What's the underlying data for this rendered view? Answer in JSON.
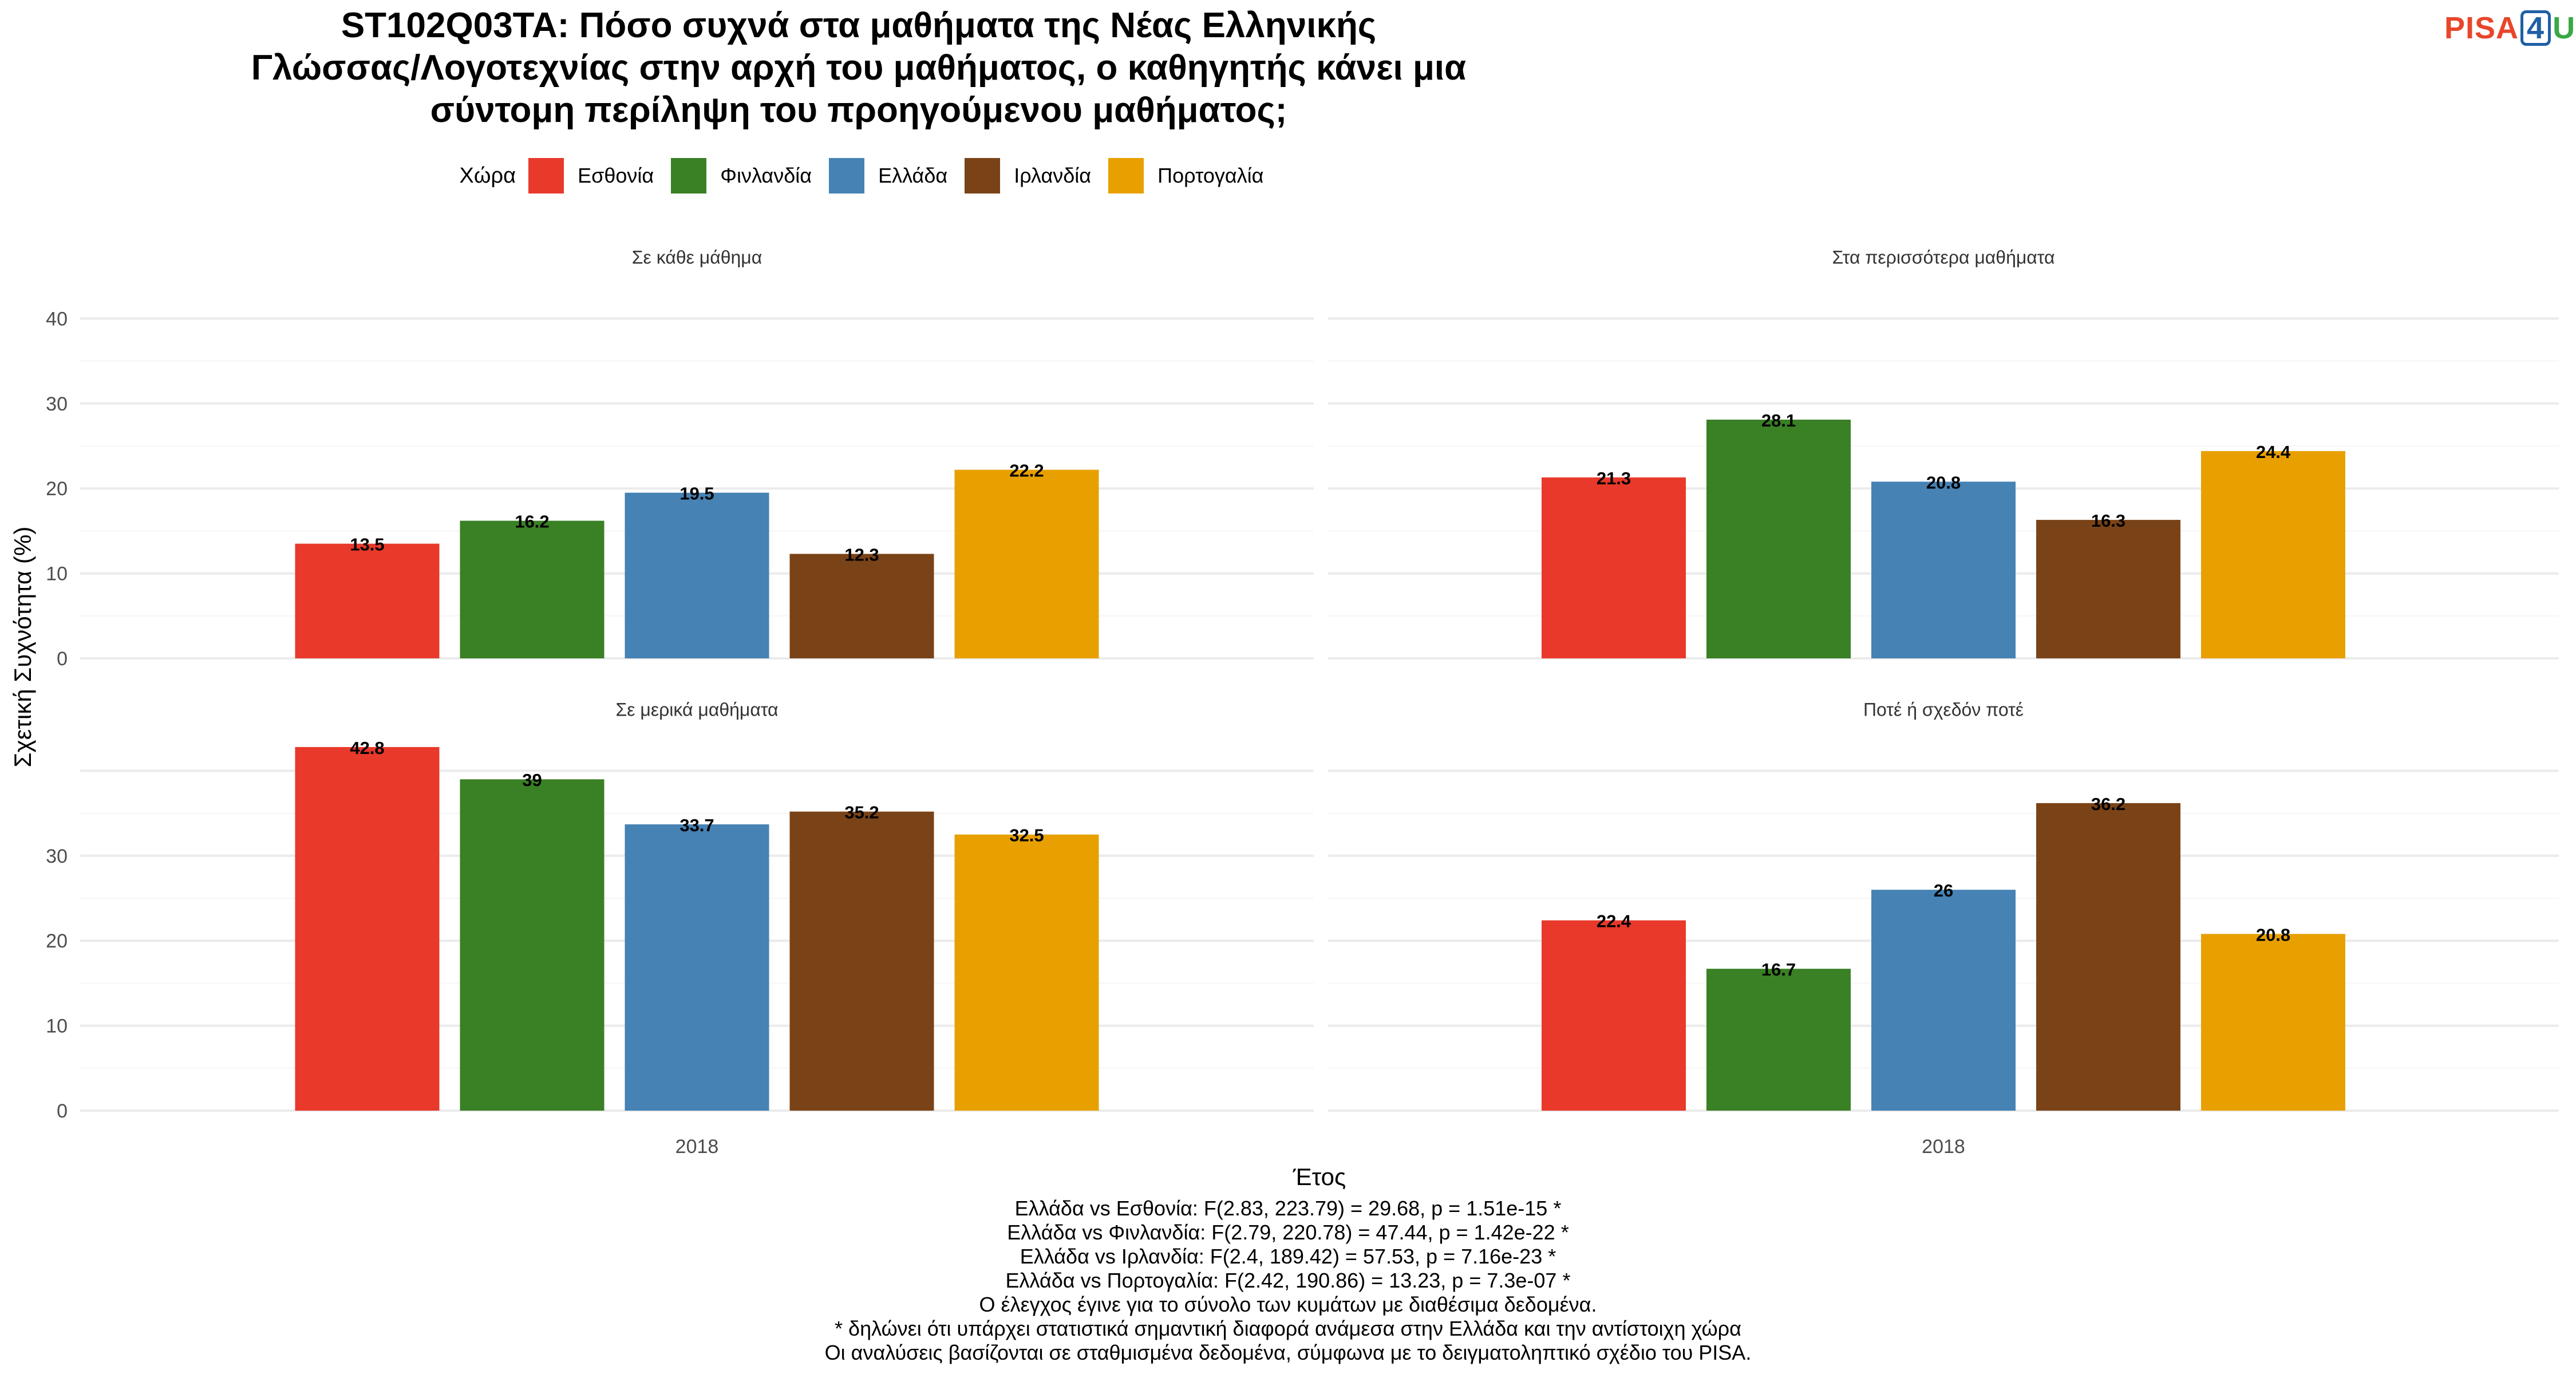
{
  "title_lines": [
    "ST102Q03TA: Πόσο συχνά στα μαθήματα της Νέας Ελληνικής",
    "Γλώσσας/Λογοτεχνίας στην αρχή του μαθήματος, ο καθηγητής κάνει μια",
    "σύντομη περίληψη του προηγούμενου μαθήματος;"
  ],
  "logo": {
    "part1": "PISA",
    "part2": "4",
    "part3": "U"
  },
  "legend": {
    "title": "Χώρα",
    "items": [
      {
        "label": "Εσθονία",
        "color": "#e8392b"
      },
      {
        "label": "Φινλανδία",
        "color": "#3a8025"
      },
      {
        "label": "Ελλάδα",
        "color": "#4682b4"
      },
      {
        "label": "Ιρλανδία",
        "color": "#7a4317"
      },
      {
        "label": "Πορτογαλία",
        "color": "#e8a000"
      }
    ]
  },
  "chart_data": {
    "type": "bar",
    "xlabel": "Έτος",
    "ylabel": "Σχετική Συχνότητα (%)",
    "ylim": [
      0,
      40
    ],
    "yticks": [
      0,
      10,
      20,
      30,
      40
    ],
    "grid": true,
    "legend_position": "top",
    "categories": [
      "2018"
    ],
    "series_names": [
      "Εσθονία",
      "Φινλανδία",
      "Ελλάδα",
      "Ιρλανδία",
      "Πορτογαλία"
    ],
    "facets": [
      {
        "title": "Σε κάθε μάθημα",
        "values": [
          13.5,
          16.2,
          19.5,
          12.3,
          22.2
        ],
        "labels": [
          "13.5",
          "16.2",
          "19.5",
          "12.3",
          "22.2"
        ]
      },
      {
        "title": "Στα περισσότερα μαθήματα",
        "values": [
          21.3,
          28.1,
          20.8,
          16.3,
          24.4
        ],
        "labels": [
          "21.3",
          "28.1",
          "20.8",
          "16.3",
          "24.4"
        ]
      },
      {
        "title": "Σε μερικά μαθήματα",
        "values": [
          42.8,
          39,
          33.7,
          35.2,
          32.5
        ],
        "labels": [
          "42.8",
          "39",
          "33.7",
          "35.2",
          "32.5"
        ]
      },
      {
        "title": "Ποτέ ή σχεδόν ποτέ",
        "values": [
          22.4,
          16.7,
          26,
          36.2,
          20.8
        ],
        "labels": [
          "22.4",
          "16.7",
          "26",
          "36.2",
          "20.8"
        ]
      }
    ]
  },
  "footer_lines": [
    "Ελλάδα vs Εσθονία: F(2.83, 223.79) = 29.68, p = 1.51e-15 *",
    "Ελλάδα vs Φινλανδία: F(2.79, 220.78) = 47.44, p = 1.42e-22 *",
    "Ελλάδα vs Ιρλανδία: F(2.4, 189.42) = 57.53, p = 7.16e-23 *",
    "Ελλάδα vs Πορτογαλία: F(2.42, 190.86) = 13.23, p = 7.3e-07 *",
    "Ο έλεγχος έγινε για το σύνολο των κυμάτων με διαθέσιμα δεδομένα.",
    "* δηλώνει ότι υπάρχει στατιστικά σημαντική διαφορά ανάμεσα στην Ελλάδα και την αντίστοιχη χώρα",
    "Οι αναλύσεις βασίζονται σε σταθμισμένα δεδομένα, σύμφωνα με το δειγματοληπτικό σχέδιο του PISA."
  ]
}
